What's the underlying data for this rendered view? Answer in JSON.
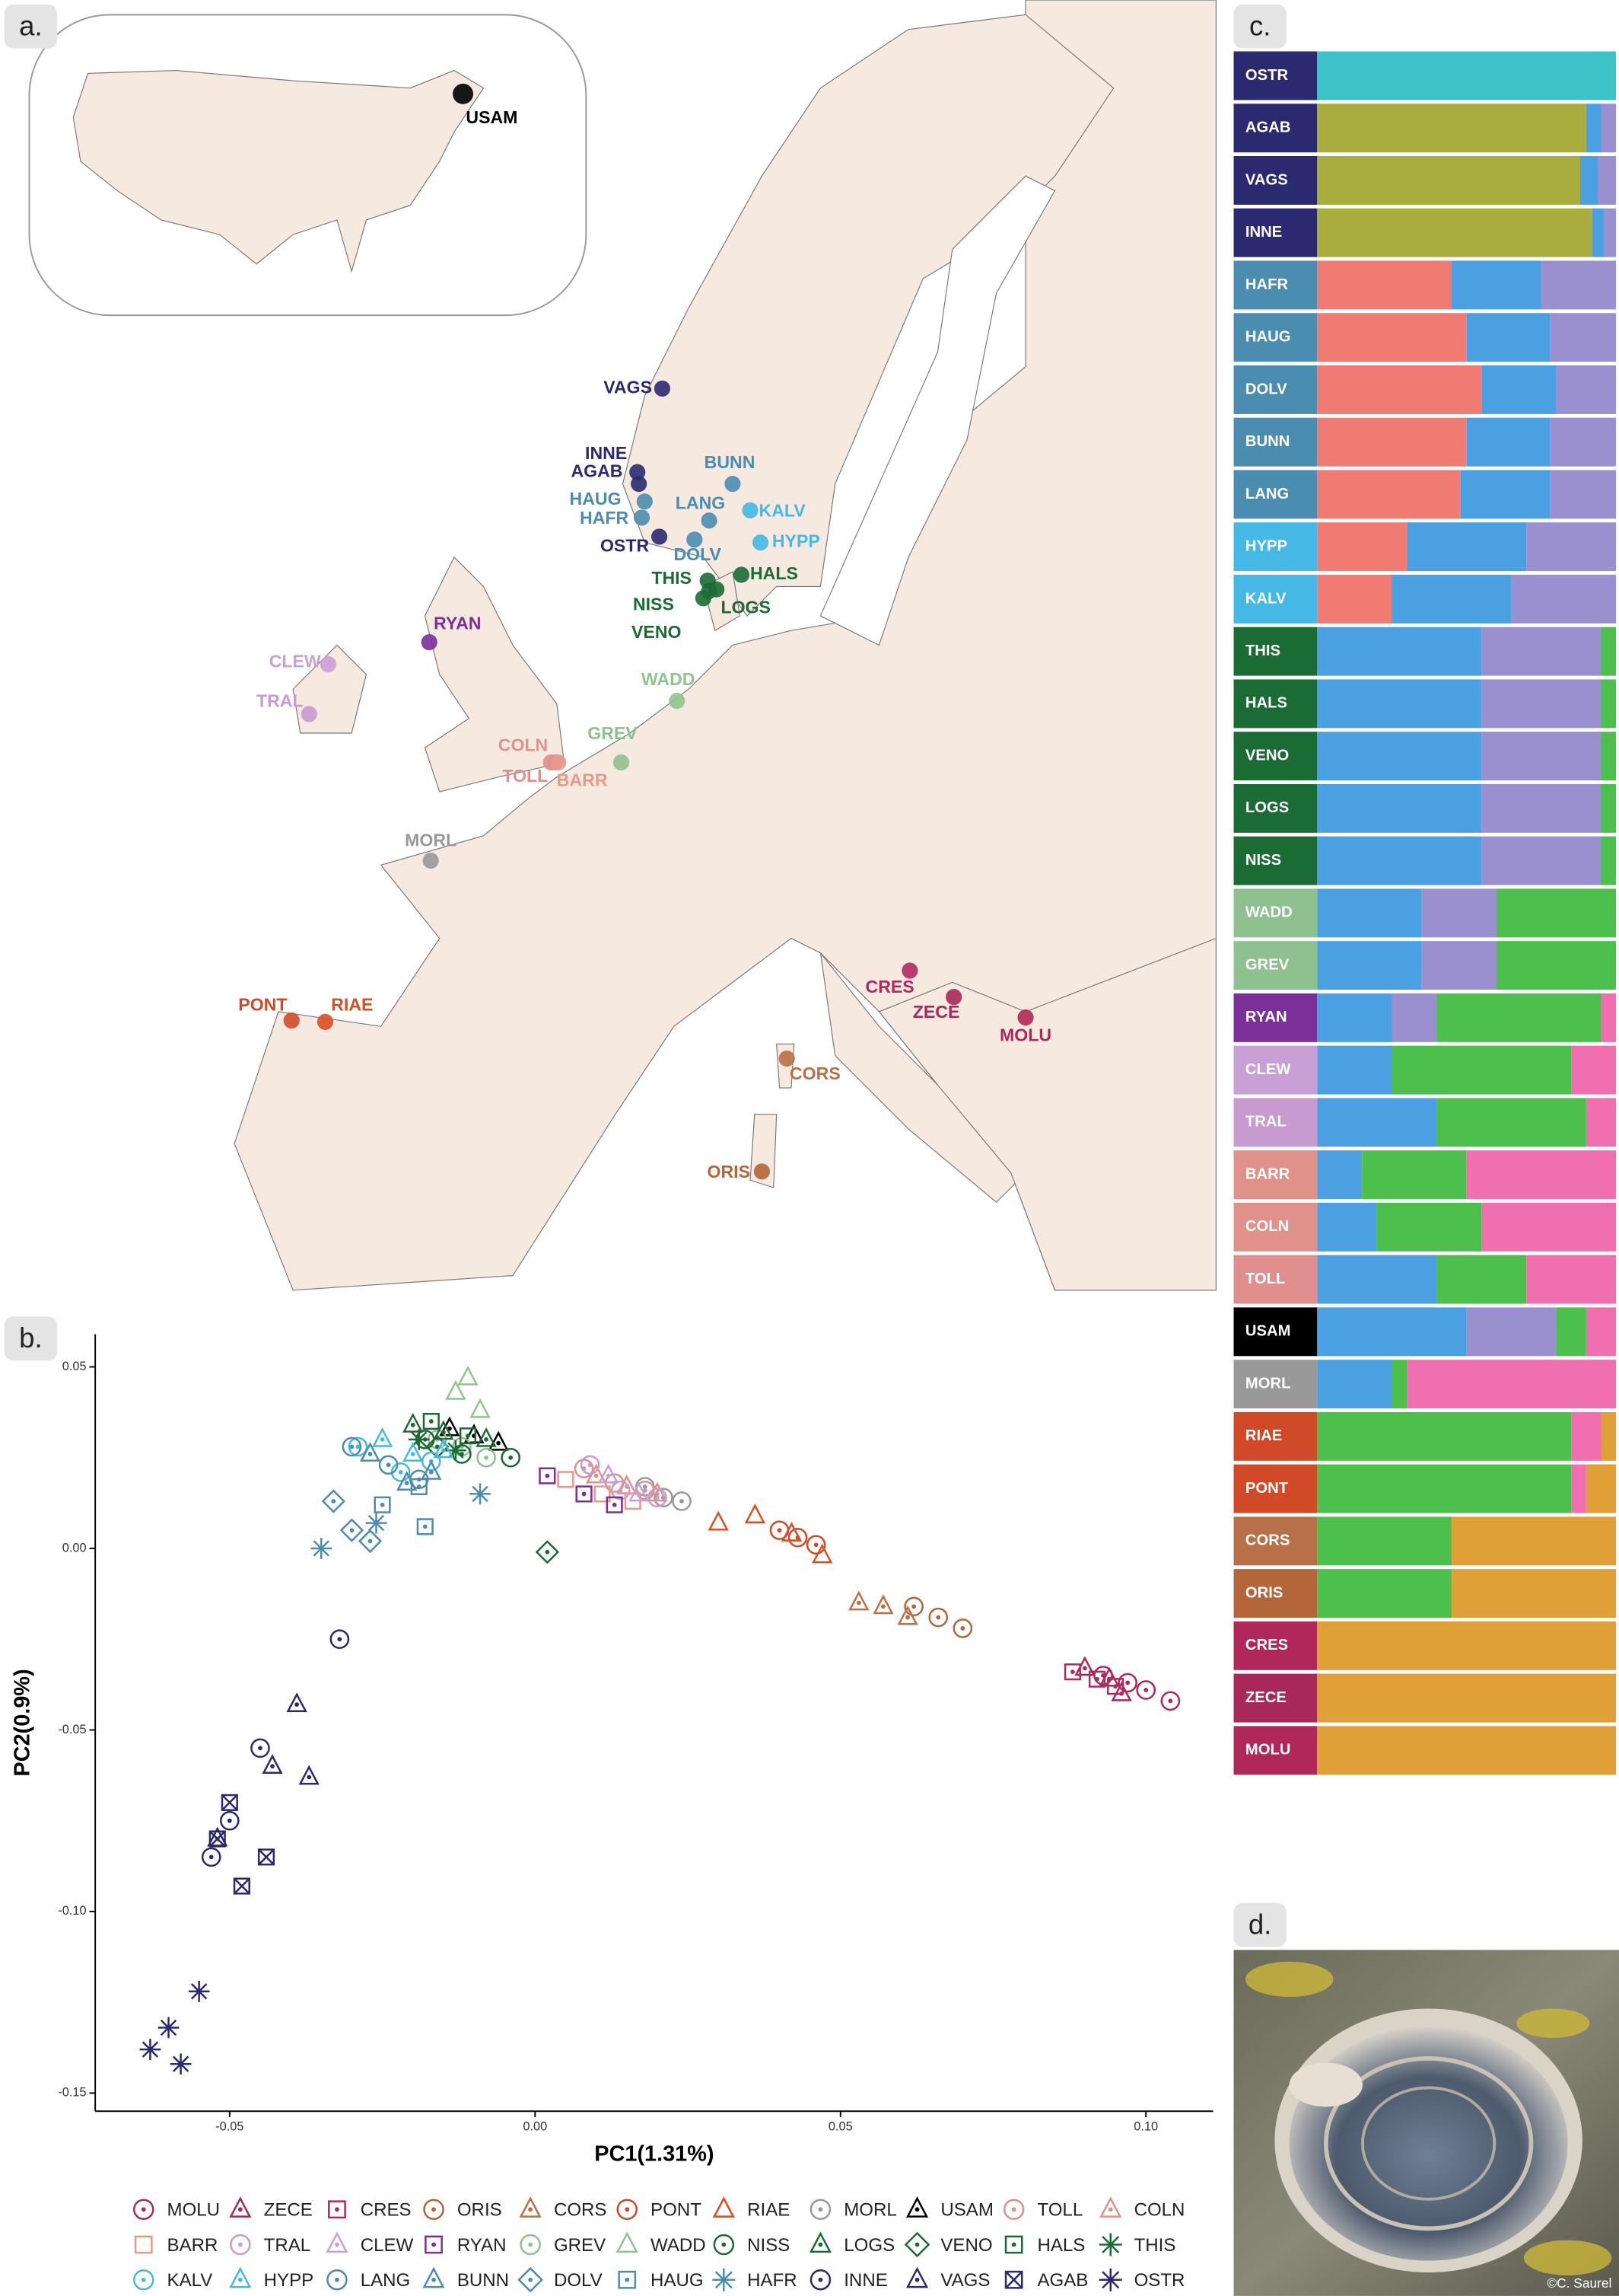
{
  "panel_labels": [
    "a.",
    "b.",
    "c.",
    "d."
  ],
  "photo": {
    "credit": "©C. Saurel"
  },
  "chart_data": [
    {
      "type": "map",
      "locations": [
        {
          "name": "VAGS",
          "color": "#2b2a70"
        },
        {
          "name": "INNE",
          "color": "#2b2a70"
        },
        {
          "name": "AGAB",
          "color": "#2b2a70"
        },
        {
          "name": "HAUG",
          "color": "#4a8db0"
        },
        {
          "name": "HAFR",
          "color": "#4a8db0"
        },
        {
          "name": "OSTR",
          "color": "#2b2a70"
        },
        {
          "name": "BUNN",
          "color": "#4a8db0"
        },
        {
          "name": "LANG",
          "color": "#4a8db0"
        },
        {
          "name": "KALV",
          "color": "#45b8e6"
        },
        {
          "name": "HYPP",
          "color": "#45b8e6"
        },
        {
          "name": "DOLV",
          "color": "#4a8db0"
        },
        {
          "name": "HALS",
          "color": "#1b6b35"
        },
        {
          "name": "THIS",
          "color": "#1b6b35"
        },
        {
          "name": "LOGS",
          "color": "#1b6b35"
        },
        {
          "name": "NISS",
          "color": "#1b6b35"
        },
        {
          "name": "VENO",
          "color": "#1b6b35"
        },
        {
          "name": "RYAN",
          "color": "#7a2f99"
        },
        {
          "name": "CLEW",
          "color": "#c9a0d6"
        },
        {
          "name": "TRAL",
          "color": "#c79ad0"
        },
        {
          "name": "WADD",
          "color": "#8fc58f"
        },
        {
          "name": "GREV",
          "color": "#8fc08f"
        },
        {
          "name": "COLN",
          "color": "#e0928a"
        },
        {
          "name": "TOLL",
          "color": "#e08e8e"
        },
        {
          "name": "BARR",
          "color": "#e89a8a"
        },
        {
          "name": "MORL",
          "color": "#999999"
        },
        {
          "name": "PONT",
          "color": "#d04a28"
        },
        {
          "name": "RIAE",
          "color": "#d94f22"
        },
        {
          "name": "CRES",
          "color": "#b02a5e"
        },
        {
          "name": "ZECE",
          "color": "#a8285a"
        },
        {
          "name": "MOLU",
          "color": "#b0285a"
        },
        {
          "name": "CORS",
          "color": "#b87048"
        },
        {
          "name": "ORIS",
          "color": "#b5653a"
        },
        {
          "name": "USAM",
          "color": "#000000"
        }
      ]
    },
    {
      "type": "scatter",
      "xlabel": "PC1(1.31%)",
      "ylabel": "PC2(0.9%)",
      "xlim": [
        -0.072,
        0.111
      ],
      "ylim": [
        -0.155,
        0.059
      ],
      "xticks": [
        -0.05,
        {
          "value": 0,
          "label": "0.00"
        },
        0.05,
        {
          "value": 0.1,
          "label": "0.10"
        }
      ],
      "yticks": [
        0.05,
        {
          "value": 0,
          "label": "0.00"
        },
        -0.05,
        {
          "value": -0.1,
          "label": "-0.10"
        },
        -0.15
      ],
      "series": [
        {
          "name": "MOLU",
          "color": "#b0285a",
          "marker": "circle-dot",
          "x": [
            0.093,
            0.097,
            0.1,
            0.104
          ],
          "y": [
            -0.035,
            -0.037,
            -0.039,
            -0.042
          ]
        },
        {
          "name": "ZECE",
          "color": "#a8285a",
          "marker": "triangle-dot",
          "x": [
            0.09,
            0.094,
            0.096
          ],
          "y": [
            -0.033,
            -0.036,
            -0.04
          ]
        },
        {
          "name": "CRES",
          "color": "#b02a5e",
          "marker": "square-dot",
          "x": [
            0.088,
            0.092,
            0.095
          ],
          "y": [
            -0.034,
            -0.036,
            -0.038
          ]
        },
        {
          "name": "ORIS",
          "color": "#b5653a",
          "marker": "circle-dot",
          "x": [
            0.062,
            0.066,
            0.07
          ],
          "y": [
            -0.016,
            -0.019,
            -0.022
          ]
        },
        {
          "name": "CORS",
          "color": "#b87048",
          "marker": "triangle-dot",
          "x": [
            0.053,
            0.057,
            0.061
          ],
          "y": [
            -0.015,
            -0.016,
            -0.019
          ]
        },
        {
          "name": "PONT",
          "color": "#d04a28",
          "marker": "circle-dot",
          "x": [
            0.04,
            0.043,
            0.046
          ],
          "y": [
            0.005,
            0.003,
            0.001
          ]
        },
        {
          "name": "RIAE",
          "color": "#d94f22",
          "marker": "triangle",
          "x": [
            0.03,
            0.036,
            0.042,
            0.047
          ],
          "y": [
            0.007,
            0.009,
            0.004,
            -0.002
          ]
        },
        {
          "name": "MORL",
          "color": "#999999",
          "marker": "circle-dot",
          "x": [
            0.018,
            0.021,
            0.024
          ],
          "y": [
            0.017,
            0.014,
            0.013
          ]
        },
        {
          "name": "USAM",
          "color": "#000000",
          "marker": "triangle-dot",
          "x": [
            -0.014,
            -0.01,
            -0.006
          ],
          "y": [
            0.033,
            0.031,
            0.029
          ]
        },
        {
          "name": "TOLL",
          "color": "#e08e8e",
          "marker": "circle-dot",
          "x": [
            0.008,
            0.013,
            0.018
          ],
          "y": [
            0.022,
            0.018,
            0.016
          ]
        },
        {
          "name": "COLN",
          "color": "#e0928a",
          "marker": "triangle-dot",
          "x": [
            0.01,
            0.015,
            0.02
          ],
          "y": [
            0.02,
            0.017,
            0.015
          ]
        },
        {
          "name": "BARR",
          "color": "#e89a8a",
          "marker": "square",
          "x": [
            0.005,
            0.011,
            0.016
          ],
          "y": [
            0.019,
            0.015,
            0.013
          ]
        },
        {
          "name": "TRAL",
          "color": "#c79ad0",
          "marker": "circle-dot",
          "x": [
            0.009,
            0.014,
            0.02
          ],
          "y": [
            0.023,
            0.016,
            0.014
          ]
        },
        {
          "name": "CLEW",
          "color": "#c9a0d6",
          "marker": "triangle-dot",
          "x": [
            0.012,
            0.017
          ],
          "y": [
            0.02,
            0.015
          ]
        },
        {
          "name": "RYAN",
          "color": "#7a2f99",
          "marker": "square-dot",
          "x": [
            0.002,
            0.008,
            0.013
          ],
          "y": [
            0.02,
            0.015,
            0.012
          ]
        },
        {
          "name": "GREV",
          "color": "#8fc08f",
          "marker": "circle-dot",
          "x": [
            -0.016,
            -0.012,
            -0.008
          ],
          "y": [
            0.03,
            0.028,
            0.025
          ]
        },
        {
          "name": "WADD",
          "color": "#8fc58f",
          "marker": "triangle",
          "x": [
            -0.013,
            -0.011,
            -0.009
          ],
          "y": [
            0.043,
            0.047,
            0.038
          ]
        },
        {
          "name": "NISS",
          "color": "#1b6b35",
          "marker": "circle-dot",
          "x": [
            -0.018,
            -0.012,
            -0.004
          ],
          "y": [
            0.03,
            0.026,
            0.025
          ]
        },
        {
          "name": "LOGS",
          "color": "#1b6b35",
          "marker": "triangle-dot",
          "x": [
            -0.02,
            -0.015,
            -0.008
          ],
          "y": [
            0.034,
            0.032,
            0.03
          ]
        },
        {
          "name": "VENO",
          "color": "#1b6b35",
          "marker": "diamond-dot",
          "x": [
            -0.016,
            0.002
          ],
          "y": [
            0.028,
            -0.001
          ]
        },
        {
          "name": "HALS",
          "color": "#1b6b35",
          "marker": "square-dot",
          "x": [
            -0.017,
            -0.011
          ],
          "y": [
            0.035,
            0.031
          ]
        },
        {
          "name": "THIS",
          "color": "#1b6b35",
          "marker": "asterisk",
          "x": [
            -0.019,
            -0.013
          ],
          "y": [
            0.03,
            0.027
          ]
        },
        {
          "name": "KALV",
          "color": "#45b8e6",
          "marker": "circle-dot",
          "x": [
            -0.029,
            -0.022,
            -0.017
          ],
          "y": [
            0.028,
            0.021,
            0.024
          ]
        },
        {
          "name": "HYPP",
          "color": "#45b8e6",
          "marker": "triangle-dot",
          "x": [
            -0.025,
            -0.02,
            -0.015
          ],
          "y": [
            0.03,
            0.026,
            0.027
          ]
        },
        {
          "name": "LANG",
          "color": "#4a8db0",
          "marker": "circle-dot",
          "x": [
            -0.03,
            -0.024,
            -0.019
          ],
          "y": [
            0.028,
            0.023,
            0.019
          ]
        },
        {
          "name": "BUNN",
          "color": "#4a8db0",
          "marker": "triangle-dot",
          "x": [
            -0.027,
            -0.021,
            -0.017
          ],
          "y": [
            0.026,
            0.018,
            0.021
          ]
        },
        {
          "name": "DOLV",
          "color": "#4a8db0",
          "marker": "diamond-dot",
          "x": [
            -0.033,
            -0.03,
            -0.027
          ],
          "y": [
            0.013,
            0.005,
            0.002
          ]
        },
        {
          "name": "HAUG",
          "color": "#4a8db0",
          "marker": "square-dot",
          "x": [
            -0.025,
            -0.019,
            -0.018
          ],
          "y": [
            0.012,
            0.017,
            0.006
          ]
        },
        {
          "name": "HAFR",
          "color": "#4a8db0",
          "marker": "asterisk",
          "x": [
            -0.035,
            -0.026,
            -0.009
          ],
          "y": [
            0.0,
            0.007,
            0.015
          ]
        },
        {
          "name": "INNE",
          "color": "#2b2a70",
          "marker": "circle-dot",
          "x": [
            -0.032,
            -0.045,
            -0.05,
            -0.053
          ],
          "y": [
            -0.025,
            -0.055,
            -0.075,
            -0.085
          ]
        },
        {
          "name": "VAGS",
          "color": "#2b2a70",
          "marker": "triangle-dot",
          "x": [
            -0.039,
            -0.043,
            -0.052,
            -0.037
          ],
          "y": [
            -0.043,
            -0.06,
            -0.08,
            -0.063
          ]
        },
        {
          "name": "AGAB",
          "color": "#2b2a70",
          "marker": "square-x",
          "x": [
            -0.052,
            -0.048,
            -0.05,
            -0.044
          ],
          "y": [
            -0.08,
            -0.093,
            -0.07,
            -0.085
          ]
        },
        {
          "name": "OSTR",
          "color": "#2b2a70",
          "marker": "asterisk",
          "x": [
            -0.063,
            -0.06,
            -0.058,
            -0.055
          ],
          "y": [
            -0.138,
            -0.132,
            -0.142,
            -0.122
          ]
        }
      ]
    },
    {
      "type": "stacked_bar",
      "orientation": "horizontal",
      "categories": [
        "OSTR",
        "AGAB",
        "VAGS",
        "INNE",
        "HAFR",
        "HAUG",
        "DOLV",
        "BUNN",
        "LANG",
        "HYPP",
        "KALV",
        "THIS",
        "HALS",
        "VENO",
        "LOGS",
        "NISS",
        "WADD",
        "GREV",
        "RYAN",
        "CLEW",
        "TRAL",
        "BARR",
        "COLN",
        "TOLL",
        "USAM",
        "MORL",
        "RIAE",
        "PONT",
        "CORS",
        "ORIS",
        "CRES",
        "ZECE",
        "MOLU"
      ],
      "category_colors": [
        "#2b2a70",
        "#2b2a70",
        "#2b2a70",
        "#2b2a70",
        "#4a8db0",
        "#4a8db0",
        "#4a8db0",
        "#4a8db0",
        "#4a8db0",
        "#45b8e6",
        "#45b8e6",
        "#1b6b35",
        "#1b6b35",
        "#1b6b35",
        "#1b6b35",
        "#1b6b35",
        "#8fc08f",
        "#8fc08f",
        "#7a2f99",
        "#c9a0d6",
        "#c79ad0",
        "#e0928a",
        "#e0928a",
        "#e08e8e",
        "#000000",
        "#999999",
        "#d04a28",
        "#d04a28",
        "#b87048",
        "#b5653a",
        "#b0285a",
        "#a8285a",
        "#b0285a"
      ],
      "series": [
        {
          "color": "#3bc3c8",
          "values": [
            100,
            0,
            0,
            0,
            0,
            0,
            0,
            0,
            0,
            0,
            0,
            0,
            0,
            0,
            0,
            0,
            0,
            0,
            0,
            0,
            0,
            0,
            0,
            0,
            0,
            0,
            0,
            0,
            0,
            0,
            0,
            0,
            0
          ]
        },
        {
          "color": "#a9ad3e",
          "values": [
            0,
            90,
            88,
            92,
            0,
            0,
            0,
            0,
            0,
            0,
            0,
            0,
            0,
            0,
            0,
            0,
            0,
            0,
            0,
            0,
            0,
            0,
            0,
            0,
            0,
            0,
            0,
            0,
            0,
            0,
            0,
            0,
            0
          ]
        },
        {
          "color": "#f07b72",
          "values": [
            0,
            0,
            0,
            0,
            45,
            50,
            55,
            50,
            48,
            30,
            25,
            0,
            0,
            0,
            0,
            0,
            0,
            0,
            0,
            0,
            0,
            0,
            0,
            0,
            0,
            0,
            0,
            0,
            0,
            0,
            0,
            0,
            0
          ]
        },
        {
          "color": "#4aa0e0",
          "values": [
            0,
            5,
            6,
            4,
            30,
            28,
            25,
            28,
            30,
            40,
            40,
            55,
            55,
            55,
            55,
            55,
            35,
            35,
            25,
            25,
            40,
            15,
            20,
            40,
            50,
            25,
            0,
            0,
            0,
            0,
            0,
            0,
            0
          ]
        },
        {
          "color": "#9a8fcf",
          "values": [
            0,
            5,
            6,
            4,
            25,
            22,
            20,
            22,
            22,
            30,
            35,
            40,
            40,
            40,
            40,
            40,
            25,
            25,
            15,
            0,
            0,
            0,
            0,
            0,
            30,
            0,
            0,
            0,
            0,
            0,
            0,
            0,
            0
          ]
        },
        {
          "color": "#4cbf4c",
          "values": [
            0,
            0,
            0,
            0,
            0,
            0,
            0,
            0,
            0,
            0,
            0,
            5,
            5,
            5,
            5,
            5,
            40,
            40,
            55,
            60,
            50,
            35,
            35,
            30,
            10,
            5,
            85,
            85,
            45,
            45,
            0,
            0,
            0
          ]
        },
        {
          "color": "#ef6fb0",
          "values": [
            0,
            0,
            0,
            0,
            0,
            0,
            0,
            0,
            0,
            0,
            0,
            0,
            0,
            0,
            0,
            0,
            0,
            0,
            5,
            15,
            10,
            50,
            45,
            30,
            10,
            70,
            10,
            5,
            0,
            0,
            0,
            0,
            0
          ]
        },
        {
          "color": "#e0a038",
          "values": [
            0,
            0,
            0,
            0,
            0,
            0,
            0,
            0,
            0,
            0,
            0,
            0,
            0,
            0,
            0,
            0,
            0,
            0,
            0,
            0,
            0,
            0,
            0,
            0,
            0,
            0,
            5,
            10,
            55,
            55,
            100,
            100,
            100
          ]
        }
      ]
    }
  ]
}
